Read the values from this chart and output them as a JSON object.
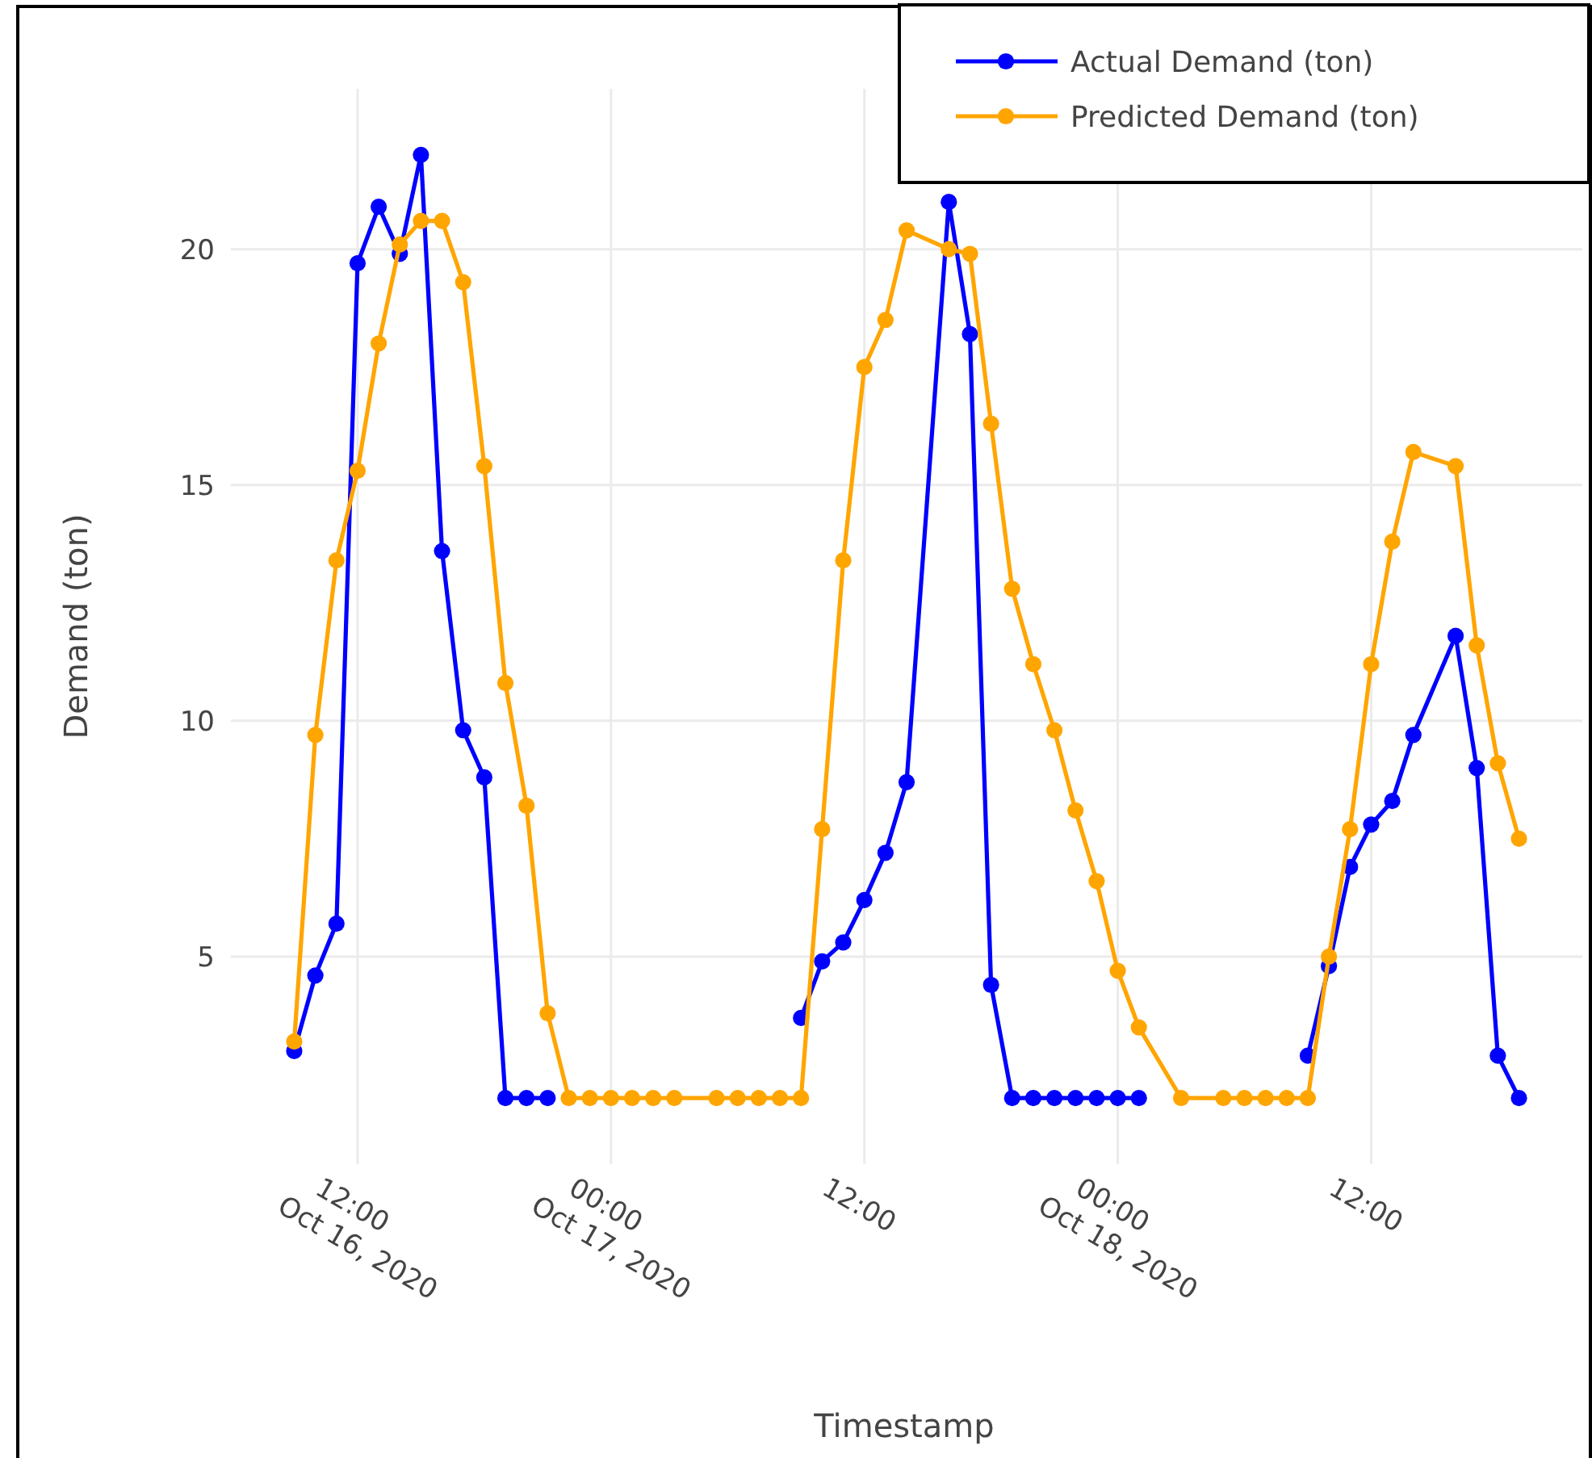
{
  "chart_data": {
    "type": "line",
    "xlabel": "Timestamp",
    "ylabel": "Demand (ton)",
    "x": [
      "2020-10-16T09:00",
      "2020-10-16T10:00",
      "2020-10-16T11:00",
      "2020-10-16T12:00",
      "2020-10-16T13:00",
      "2020-10-16T14:00",
      "2020-10-16T15:00",
      "2020-10-16T16:00",
      "2020-10-16T17:00",
      "2020-10-16T18:00",
      "2020-10-16T19:00",
      "2020-10-16T20:00",
      "2020-10-16T21:00",
      "2020-10-16T22:00",
      "2020-10-16T23:00",
      "2020-10-17T00:00",
      "2020-10-17T01:00",
      "2020-10-17T02:00",
      "2020-10-17T03:00",
      "2020-10-17T05:00",
      "2020-10-17T06:00",
      "2020-10-17T07:00",
      "2020-10-17T08:00",
      "2020-10-17T09:00",
      "2020-10-17T10:00",
      "2020-10-17T11:00",
      "2020-10-17T12:00",
      "2020-10-17T13:00",
      "2020-10-17T14:00",
      "2020-10-17T16:00",
      "2020-10-17T17:00",
      "2020-10-17T18:00",
      "2020-10-17T19:00",
      "2020-10-17T20:00",
      "2020-10-17T21:00",
      "2020-10-17T22:00",
      "2020-10-17T23:00",
      "2020-10-18T00:00",
      "2020-10-18T01:00",
      "2020-10-18T03:00",
      "2020-10-18T05:00",
      "2020-10-18T06:00",
      "2020-10-18T07:00",
      "2020-10-18T08:00",
      "2020-10-18T09:00",
      "2020-10-18T10:00",
      "2020-10-18T11:00",
      "2020-10-18T12:00",
      "2020-10-18T13:00",
      "2020-10-18T14:00",
      "2020-10-18T16:00",
      "2020-10-18T17:00",
      "2020-10-18T18:00",
      "2020-10-18T19:00"
    ],
    "series": [
      {
        "name": "Actual Demand (ton)",
        "color": "#0000ff",
        "values": [
          3.0,
          4.6,
          5.7,
          19.7,
          20.9,
          19.9,
          22.0,
          13.6,
          9.8,
          8.8,
          2,
          2,
          2,
          null,
          null,
          null,
          null,
          null,
          null,
          null,
          null,
          null,
          null,
          3.7,
          4.9,
          5.3,
          6.2,
          7.2,
          8.7,
          21.0,
          18.2,
          4.4,
          2,
          2,
          2,
          2,
          2,
          2,
          2,
          null,
          null,
          null,
          null,
          null,
          2.9,
          4.8,
          6.9,
          7.8,
          8.3,
          9.7,
          11.8,
          9.0,
          2.9,
          2
        ]
      },
      {
        "name": "Predicted Demand (ton)",
        "color": "#ffa500",
        "values": [
          3.2,
          9.7,
          13.4,
          15.3,
          18.0,
          20.1,
          20.6,
          20.6,
          19.3,
          15.4,
          10.8,
          8.2,
          3.8,
          2,
          2,
          2,
          2,
          2,
          2,
          2,
          2,
          2,
          2,
          2,
          7.7,
          13.4,
          17.5,
          18.5,
          20.4,
          20.0,
          19.9,
          16.3,
          12.8,
          11.2,
          9.8,
          8.1,
          6.6,
          4.7,
          3.5,
          2,
          2,
          2,
          2,
          2,
          2,
          5.0,
          7.7,
          11.2,
          13.8,
          15.7,
          15.4,
          11.6,
          9.1,
          7.5
        ]
      }
    ],
    "xlim": [
      "2020-10-16T06:00",
      "2020-10-18T22:00"
    ],
    "xticks": [
      {
        "value": "2020-10-16T12:00",
        "label": "12:00\nOct 16, 2020"
      },
      {
        "value": "2020-10-17T00:00",
        "label": "00:00\nOct 17, 2020"
      },
      {
        "value": "2020-10-17T12:00",
        "label": "12:00"
      },
      {
        "value": "2020-10-18T00:00",
        "label": "00:00\nOct 18, 2020"
      },
      {
        "value": "2020-10-18T12:00",
        "label": "12:00"
      }
    ],
    "ylim": [
      0.6,
      23.4
    ],
    "yticks": [
      5,
      10,
      15,
      20
    ],
    "grid": true,
    "legend": "top right",
    "marker": "circle",
    "line_style": "solid"
  }
}
